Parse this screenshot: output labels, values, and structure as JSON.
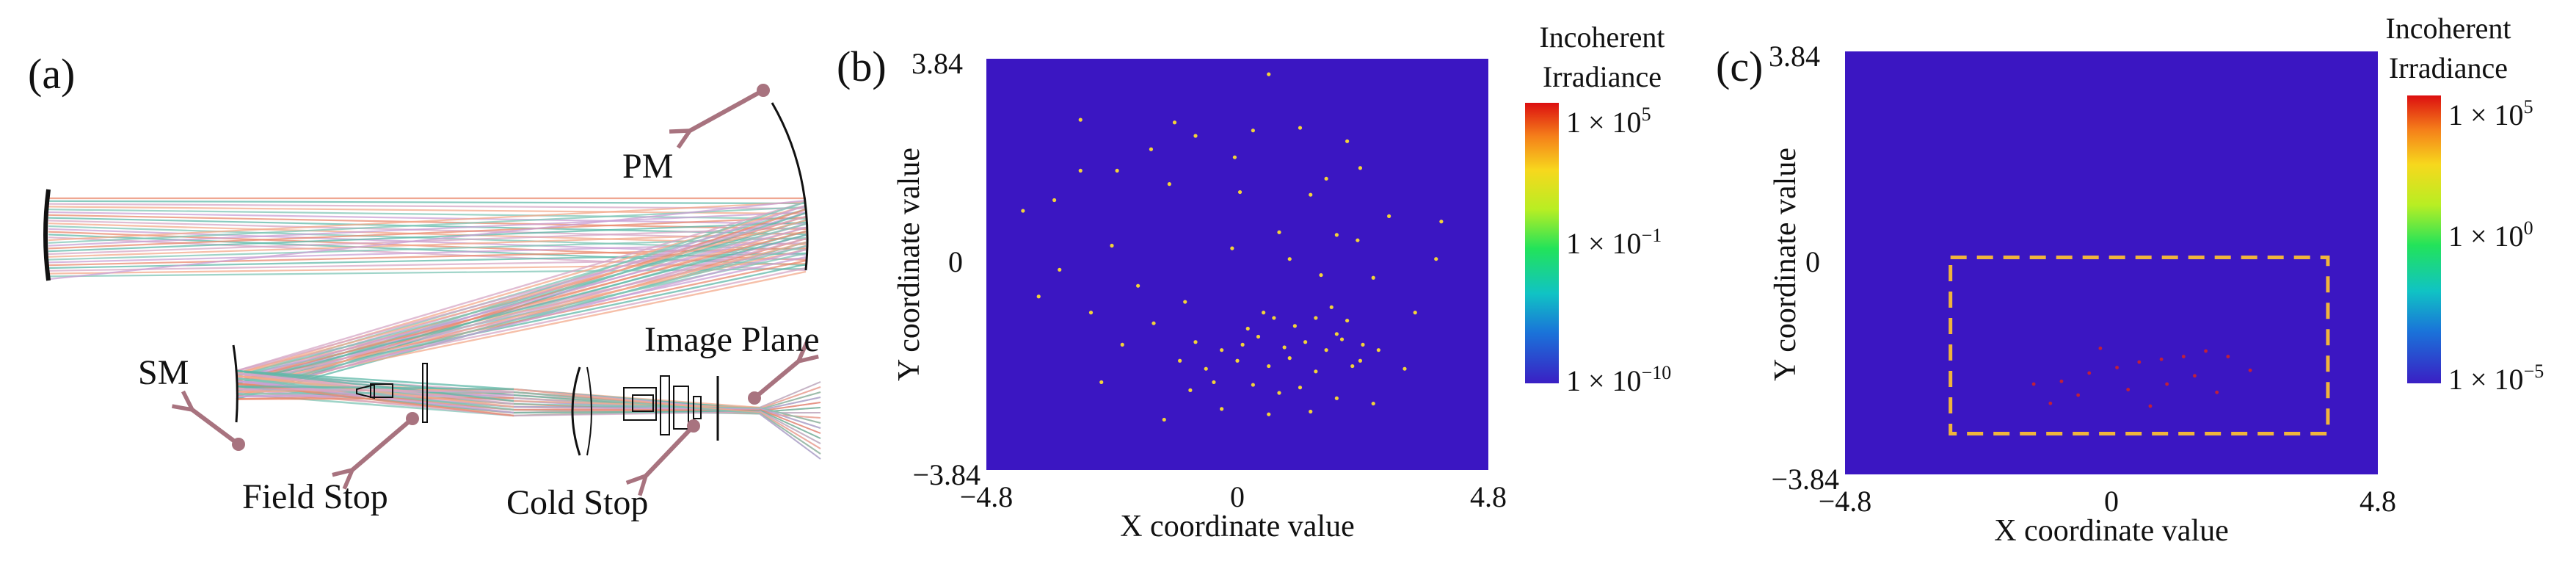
{
  "panel_a": {
    "label": "(a)",
    "components": {
      "pm": "PM",
      "sm": "SM",
      "image_plane": "Image Plane",
      "field_stop": "Field Stop",
      "cold_stop": "Cold Stop"
    },
    "arrow_color": "#a8737f"
  },
  "chart_data": [
    {
      "type": "scatter",
      "panel_label": "(b)",
      "title": "",
      "xlabel": "X coordinate value",
      "ylabel": "Y coordinate value",
      "xlim": [
        -4.8,
        4.8
      ],
      "ylim": [
        -3.84,
        3.84
      ],
      "x_ticks": [
        "−4.8",
        "0",
        "4.8"
      ],
      "y_ticks": [
        "−3.84",
        "0",
        "3.84"
      ],
      "background_color": "#3b16c2",
      "colorbar": {
        "title_line1": "Incoherent",
        "title_line2": "Irradiance",
        "scale": "log",
        "tick_labels": [
          "1 × 10^5",
          "1 × 10^−1",
          "1 × 10^−10"
        ],
        "tick_values": [
          100000.0,
          0.1,
          1e-10
        ]
      },
      "points": [
        {
          "x": -0.1,
          "y": 0.3
        },
        {
          "x": -2.3,
          "y": 1.75
        },
        {
          "x": -3.0,
          "y": 1.75
        },
        {
          "x": 2.35,
          "y": 1.8
        },
        {
          "x": -2.2,
          "y": -1.5
        },
        {
          "x": 2.4,
          "y": -1.5
        },
        {
          "x": 2.35,
          "y": -1.8
        },
        {
          "x": -0.45,
          "y": -2.2
        },
        {
          "x": -1.2,
          "y": 2.65
        },
        {
          "x": -1.65,
          "y": 2.15
        },
        {
          "x": -0.8,
          "y": 2.4
        },
        {
          "x": 0.3,
          "y": 2.5
        },
        {
          "x": 1.2,
          "y": 2.55
        },
        {
          "x": 2.1,
          "y": 2.3
        },
        {
          "x": 0.6,
          "y": 3.55
        },
        {
          "x": -3.0,
          "y": 2.7
        },
        {
          "x": -3.5,
          "y": 1.2
        },
        {
          "x": -4.1,
          "y": 1.0
        },
        {
          "x": -2.4,
          "y": 0.35
        },
        {
          "x": 0.05,
          "y": 1.35
        },
        {
          "x": 1.4,
          "y": 1.3
        },
        {
          "x": 1.9,
          "y": 0.55
        },
        {
          "x": 2.3,
          "y": 0.45
        },
        {
          "x": 2.9,
          "y": 0.9
        },
        {
          "x": 3.9,
          "y": 0.8
        },
        {
          "x": -3.4,
          "y": -0.1
        },
        {
          "x": -1.9,
          "y": -0.4
        },
        {
          "x": 1.0,
          "y": 0.1
        },
        {
          "x": 1.6,
          "y": -0.2
        },
        {
          "x": 2.6,
          "y": -0.25
        },
        {
          "x": 3.8,
          "y": 0.1
        },
        {
          "x": -3.8,
          "y": -0.6
        },
        {
          "x": -2.8,
          "y": -0.9
        },
        {
          "x": -1.0,
          "y": -0.7
        },
        {
          "x": 0.5,
          "y": -0.9
        },
        {
          "x": 1.8,
          "y": -0.8
        },
        {
          "x": 3.4,
          "y": -0.9
        },
        {
          "x": -1.6,
          "y": -1.1
        },
        {
          "x": 0.2,
          "y": -1.2
        },
        {
          "x": 0.7,
          "y": -1.0
        },
        {
          "x": 1.1,
          "y": -1.15
        },
        {
          "x": 1.5,
          "y": -1.0
        },
        {
          "x": 1.9,
          "y": -1.3
        },
        {
          "x": 2.1,
          "y": -1.05
        },
        {
          "x": -0.8,
          "y": -1.45
        },
        {
          "x": -0.3,
          "y": -1.6
        },
        {
          "x": 0.1,
          "y": -1.5
        },
        {
          "x": 0.4,
          "y": -1.35
        },
        {
          "x": 0.9,
          "y": -1.55
        },
        {
          "x": 1.3,
          "y": -1.45
        },
        {
          "x": 1.7,
          "y": -1.6
        },
        {
          "x": 2.0,
          "y": -1.4
        },
        {
          "x": -1.1,
          "y": -1.8
        },
        {
          "x": -0.6,
          "y": -1.95
        },
        {
          "x": 0.0,
          "y": -1.8
        },
        {
          "x": 0.6,
          "y": -1.9
        },
        {
          "x": 1.0,
          "y": -1.75
        },
        {
          "x": 1.5,
          "y": -2.0
        },
        {
          "x": 2.2,
          "y": -1.9
        },
        {
          "x": 2.7,
          "y": -1.6
        },
        {
          "x": -0.9,
          "y": -2.35
        },
        {
          "x": 0.3,
          "y": -2.25
        },
        {
          "x": 0.8,
          "y": -2.4
        },
        {
          "x": 1.2,
          "y": -2.3
        },
        {
          "x": 1.9,
          "y": -2.5
        },
        {
          "x": -0.3,
          "y": -2.7
        },
        {
          "x": 0.6,
          "y": -2.8
        },
        {
          "x": 1.4,
          "y": -2.75
        },
        {
          "x": -1.4,
          "y": -2.9
        },
        {
          "x": 2.6,
          "y": -2.6
        },
        {
          "x": -2.6,
          "y": -2.2
        },
        {
          "x": 3.2,
          "y": -1.95
        },
        {
          "x": -0.05,
          "y": 2.0
        },
        {
          "x": 1.7,
          "y": 1.6
        },
        {
          "x": -1.3,
          "y": 1.5
        },
        {
          "x": 0.8,
          "y": 0.6
        }
      ]
    },
    {
      "type": "scatter",
      "panel_label": "(c)",
      "title": "",
      "xlabel": "X coordinate value",
      "ylabel": "Y coordinate value",
      "xlim": [
        -4.8,
        4.8
      ],
      "ylim": [
        -3.84,
        3.84
      ],
      "x_ticks": [
        "−4.8",
        "0",
        "4.8"
      ],
      "y_ticks": [
        "−3.84",
        "0",
        "3.84"
      ],
      "background_color": "#3b16c2",
      "highlight_box": {
        "x0": -2.9,
        "x1": 3.9,
        "y0": -3.1,
        "y1": 0.1,
        "color": "#f0b43c"
      },
      "colorbar": {
        "title_line1": "Incoherent",
        "title_line2": "Irradiance",
        "scale": "log",
        "tick_labels": [
          "1 × 10^5",
          "1 × 10^0",
          "1 × 10^−5"
        ],
        "tick_values": [
          100000.0,
          1.0,
          1e-05
        ]
      },
      "points": [
        {
          "x": -1.4,
          "y": -2.2
        },
        {
          "x": -0.9,
          "y": -2.15
        },
        {
          "x": -0.4,
          "y": -2.0
        },
        {
          "x": 0.1,
          "y": -1.9
        },
        {
          "x": 0.5,
          "y": -1.8
        },
        {
          "x": 0.9,
          "y": -1.75
        },
        {
          "x": 1.3,
          "y": -1.7
        },
        {
          "x": 1.7,
          "y": -1.6
        },
        {
          "x": 2.1,
          "y": -1.7
        },
        {
          "x": -0.6,
          "y": -2.4
        },
        {
          "x": 0.3,
          "y": -2.3
        },
        {
          "x": 1.0,
          "y": -2.2
        },
        {
          "x": 1.5,
          "y": -2.05
        },
        {
          "x": -1.1,
          "y": -2.55
        },
        {
          "x": 0.7,
          "y": -2.6
        },
        {
          "x": 2.5,
          "y": -1.95
        },
        {
          "x": -0.2,
          "y": -1.55
        },
        {
          "x": 1.9,
          "y": -2.35
        }
      ]
    }
  ]
}
